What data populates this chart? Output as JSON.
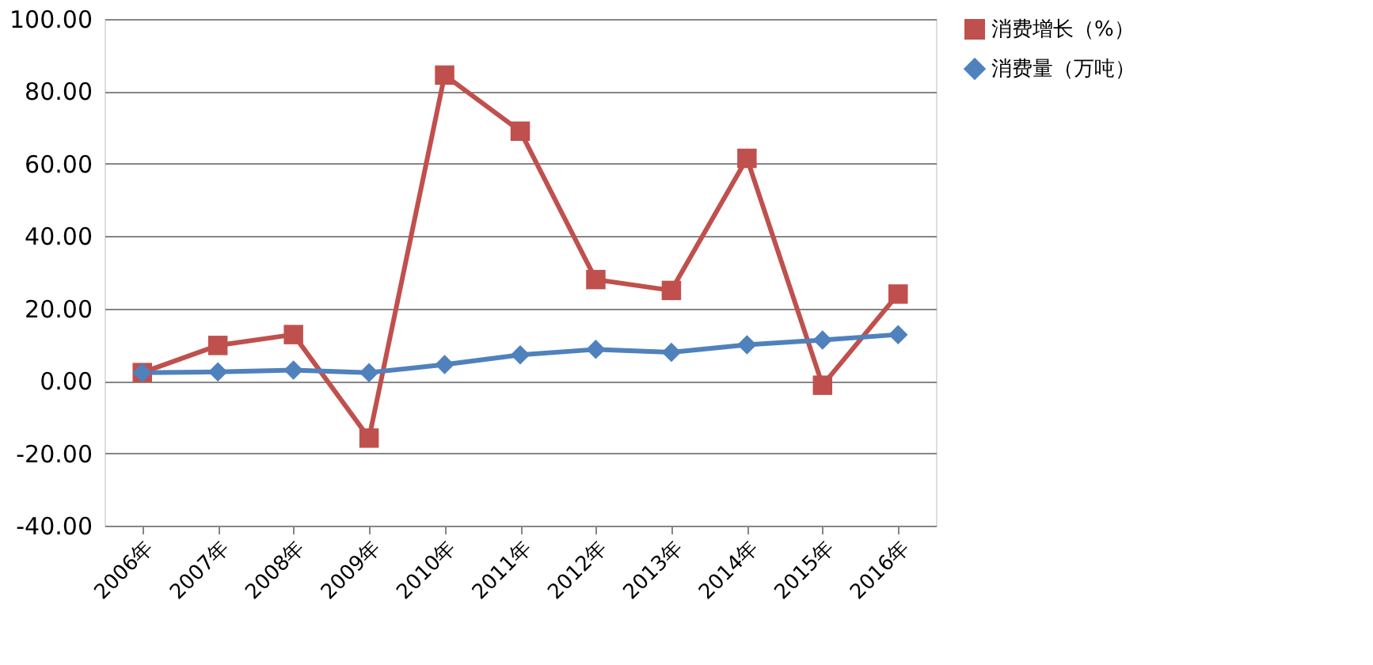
{
  "chart_data": {
    "type": "line",
    "categories": [
      "2006年",
      "2007年",
      "2008年",
      "2009年",
      "2010年",
      "2011年",
      "2012年",
      "2013年",
      "2014年",
      "2015年",
      "2016年"
    ],
    "series": [
      {
        "name": "消费增长（%）",
        "color": "#c0504d",
        "marker": "square",
        "values": [
          2.3,
          9.8,
          12.8,
          -15.8,
          84.5,
          69.0,
          28.0,
          25.0,
          61.5,
          -1.2,
          24.0
        ]
      },
      {
        "name": "消费量（万吨）",
        "color": "#4f81bd",
        "marker": "diamond",
        "values": [
          2.3,
          2.5,
          3.0,
          2.3,
          4.5,
          7.2,
          8.7,
          7.9,
          10.0,
          11.3,
          12.8
        ]
      }
    ],
    "ylim": [
      -40,
      100
    ],
    "yticks": [
      {
        "value": -40,
        "label": "-40.00"
      },
      {
        "value": -20,
        "label": "-20.00"
      },
      {
        "value": 0,
        "label": "0.00"
      },
      {
        "value": 20,
        "label": "20.00"
      },
      {
        "value": 40,
        "label": "40.00"
      },
      {
        "value": 60,
        "label": "60.00"
      },
      {
        "value": 80,
        "label": "80.00"
      },
      {
        "value": 100,
        "label": "100.00"
      }
    ],
    "grid": "y",
    "legend": "right",
    "line_style": "solid"
  }
}
